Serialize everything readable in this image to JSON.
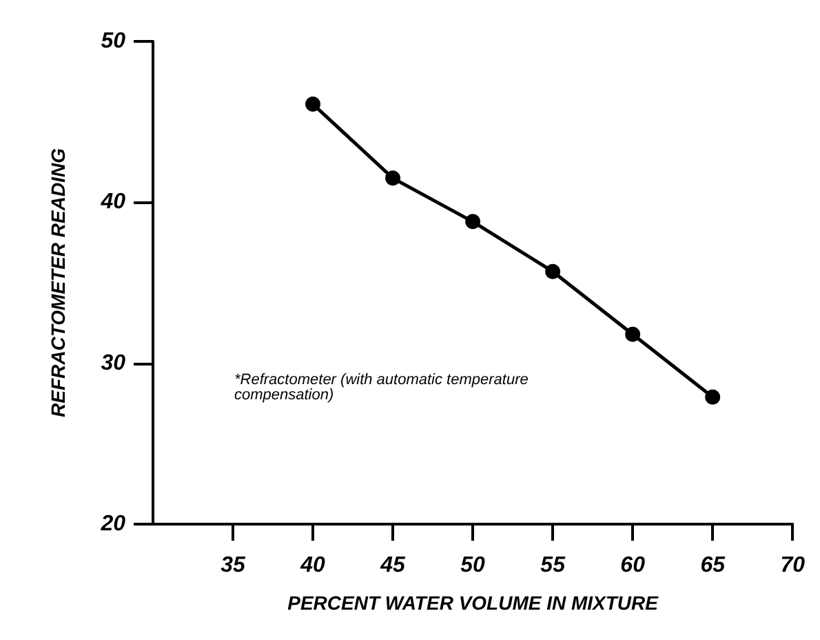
{
  "chart_data": {
    "type": "line",
    "xlabel": "PERCENT WATER VOLUME IN MIXTURE",
    "ylabel": "REFRACTOMETER READING",
    "x": [
      40,
      45,
      50,
      55,
      60,
      65
    ],
    "series": [
      {
        "color": "#000000",
        "values": [
          46.1,
          41.5,
          38.8,
          35.7,
          31.8,
          27.9
        ]
      }
    ],
    "xlim": [
      30,
      70
    ],
    "xticks": [
      35,
      40,
      45,
      50,
      55,
      60,
      65,
      70
    ],
    "ylim": [
      20,
      50
    ],
    "yticks": [
      20,
      30,
      40,
      50
    ],
    "annotations": [
      "*Refractometer (with automatic temperature compensation)"
    ],
    "grid": false,
    "marker": "circle",
    "line_style": "solid"
  }
}
